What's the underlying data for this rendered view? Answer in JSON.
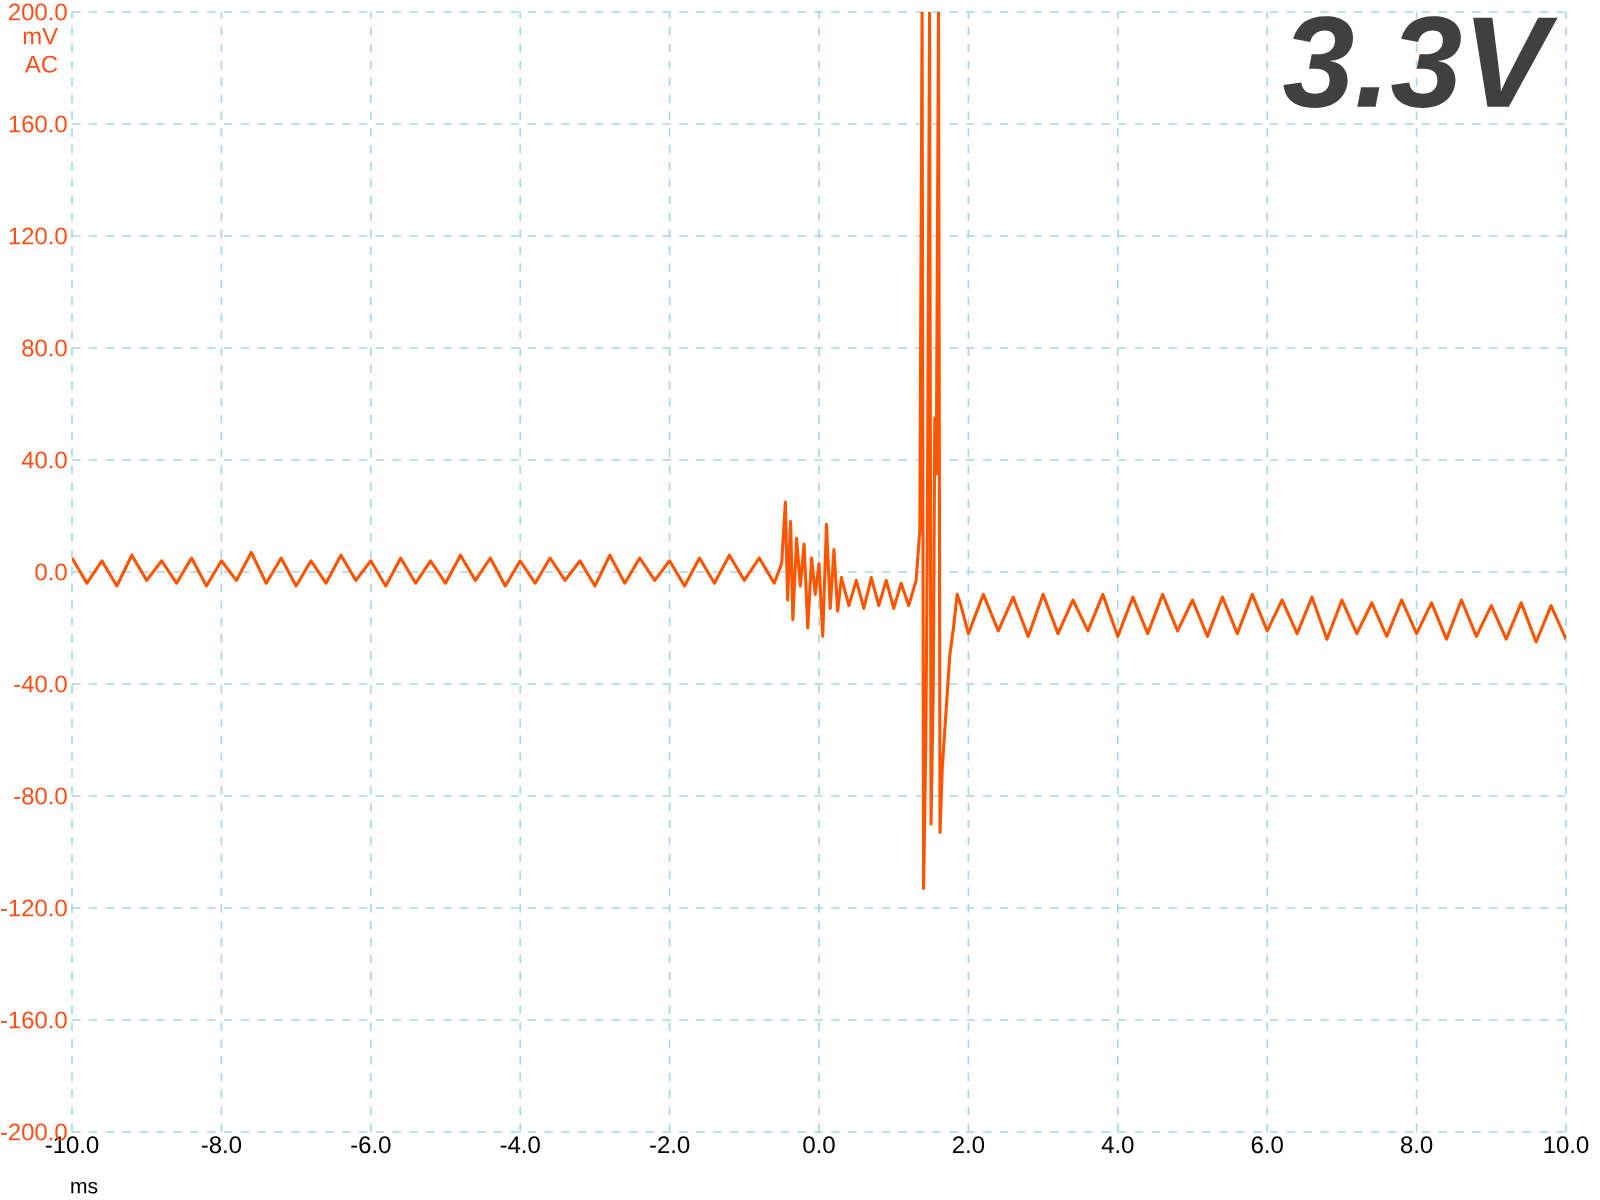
{
  "chart_data": {
    "type": "line",
    "title": "3.3V",
    "xlabel": "ms",
    "ylabel": "mV AC",
    "xlim": [
      -10,
      10
    ],
    "ylim": [
      -200,
      200
    ],
    "grid": true,
    "xticks": [
      {
        "value": -10,
        "label": "-10.0"
      },
      {
        "value": -8,
        "label": "-8.0"
      },
      {
        "value": -6,
        "label": "-6.0"
      },
      {
        "value": -4,
        "label": "-4.0"
      },
      {
        "value": -2,
        "label": "-2.0"
      },
      {
        "value": 0,
        "label": "0.0"
      },
      {
        "value": 2,
        "label": "2.0"
      },
      {
        "value": 4,
        "label": "4.0"
      },
      {
        "value": 6,
        "label": "6.0"
      },
      {
        "value": 8,
        "label": "8.0"
      },
      {
        "value": 10,
        "label": "10.0"
      }
    ],
    "yticks": [
      {
        "value": -200,
        "label": "-200.0"
      },
      {
        "value": -160,
        "label": "-160.0"
      },
      {
        "value": -120,
        "label": "-120.0"
      },
      {
        "value": -80,
        "label": "-80.0"
      },
      {
        "value": -40,
        "label": "-40.0"
      },
      {
        "value": 0,
        "label": "0.0"
      },
      {
        "value": 40,
        "label": "40.0"
      },
      {
        "value": 80,
        "label": "80.0"
      },
      {
        "value": 120,
        "label": "120.0"
      },
      {
        "value": 160,
        "label": "160.0"
      },
      {
        "value": 200,
        "label": "200.0"
      }
    ],
    "x": [
      -10,
      -9.8,
      -9.6,
      -9.4,
      -9.2,
      -9,
      -8.8,
      -8.6,
      -8.4,
      -8.2,
      -8,
      -7.8,
      -7.6,
      -7.4,
      -7.2,
      -7,
      -6.8,
      -6.6,
      -6.4,
      -6.2,
      -6,
      -5.8,
      -5.6,
      -5.4,
      -5.2,
      -5,
      -4.8,
      -4.6,
      -4.4,
      -4.2,
      -4,
      -3.8,
      -3.6,
      -3.4,
      -3.2,
      -3,
      -2.8,
      -2.6,
      -2.4,
      -2.2,
      -2,
      -1.8,
      -1.6,
      -1.4,
      -1.2,
      -1,
      -0.8,
      -0.6,
      -0.5,
      -0.45,
      -0.42,
      -0.38,
      -0.35,
      -0.3,
      -0.25,
      -0.2,
      -0.15,
      -0.1,
      -0.05,
      0,
      0.05,
      0.1,
      0.15,
      0.2,
      0.25,
      0.3,
      0.4,
      0.5,
      0.6,
      0.7,
      0.8,
      0.9,
      1,
      1.1,
      1.2,
      1.3,
      1.35,
      1.38,
      1.4,
      1.43,
      1.45,
      1.48,
      1.5,
      1.53,
      1.55,
      1.57,
      1.6,
      1.62,
      1.65,
      1.7,
      1.75,
      1.8,
      1.85,
      1.9,
      2,
      2.2,
      2.4,
      2.6,
      2.8,
      3,
      3.2,
      3.4,
      3.6,
      3.8,
      4,
      4.2,
      4.4,
      4.6,
      4.8,
      5,
      5.2,
      5.4,
      5.6,
      5.8,
      6,
      6.2,
      6.4,
      6.6,
      6.8,
      7,
      7.2,
      7.4,
      7.6,
      7.8,
      8,
      8.2,
      8.4,
      8.6,
      8.8,
      9,
      9.2,
      9.4,
      9.6,
      9.8,
      10
    ],
    "series": [
      {
        "color": "#ff5500",
        "values": [
          5,
          -4,
          4,
          -5,
          6,
          -3,
          4,
          -4,
          5,
          -5,
          4,
          -3,
          7,
          -4,
          5,
          -5,
          4,
          -4,
          6,
          -3,
          4,
          -5,
          5,
          -4,
          4,
          -4,
          6,
          -3,
          5,
          -5,
          4,
          -4,
          5,
          -3,
          4,
          -5,
          6,
          -4,
          5,
          -3,
          4,
          -5,
          5,
          -4,
          6,
          -3,
          5,
          -4,
          3,
          25,
          -10,
          18,
          -17,
          12,
          -5,
          10,
          -20,
          5,
          -8,
          3,
          -23,
          17,
          -13,
          8,
          -14,
          -2,
          -12,
          -3,
          -13,
          -2,
          -12,
          -3,
          -13,
          -4,
          -12,
          -3,
          15,
          200,
          -113,
          -60,
          10,
          200,
          -90,
          -40,
          55,
          35,
          200,
          -93,
          -70,
          -50,
          -30,
          -20,
          -8,
          -12,
          -22,
          -8,
          -21,
          -9,
          -23,
          -8,
          -22,
          -10,
          -21,
          -8,
          -23,
          -9,
          -22,
          -8,
          -21,
          -10,
          -23,
          -9,
          -22,
          -8,
          -21,
          -10,
          -22,
          -9,
          -24,
          -10,
          -22,
          -11,
          -23,
          -10,
          -22,
          -11,
          -24,
          -10,
          -23,
          -12,
          -24,
          -11,
          -25,
          -12,
          -24
        ]
      }
    ]
  }
}
